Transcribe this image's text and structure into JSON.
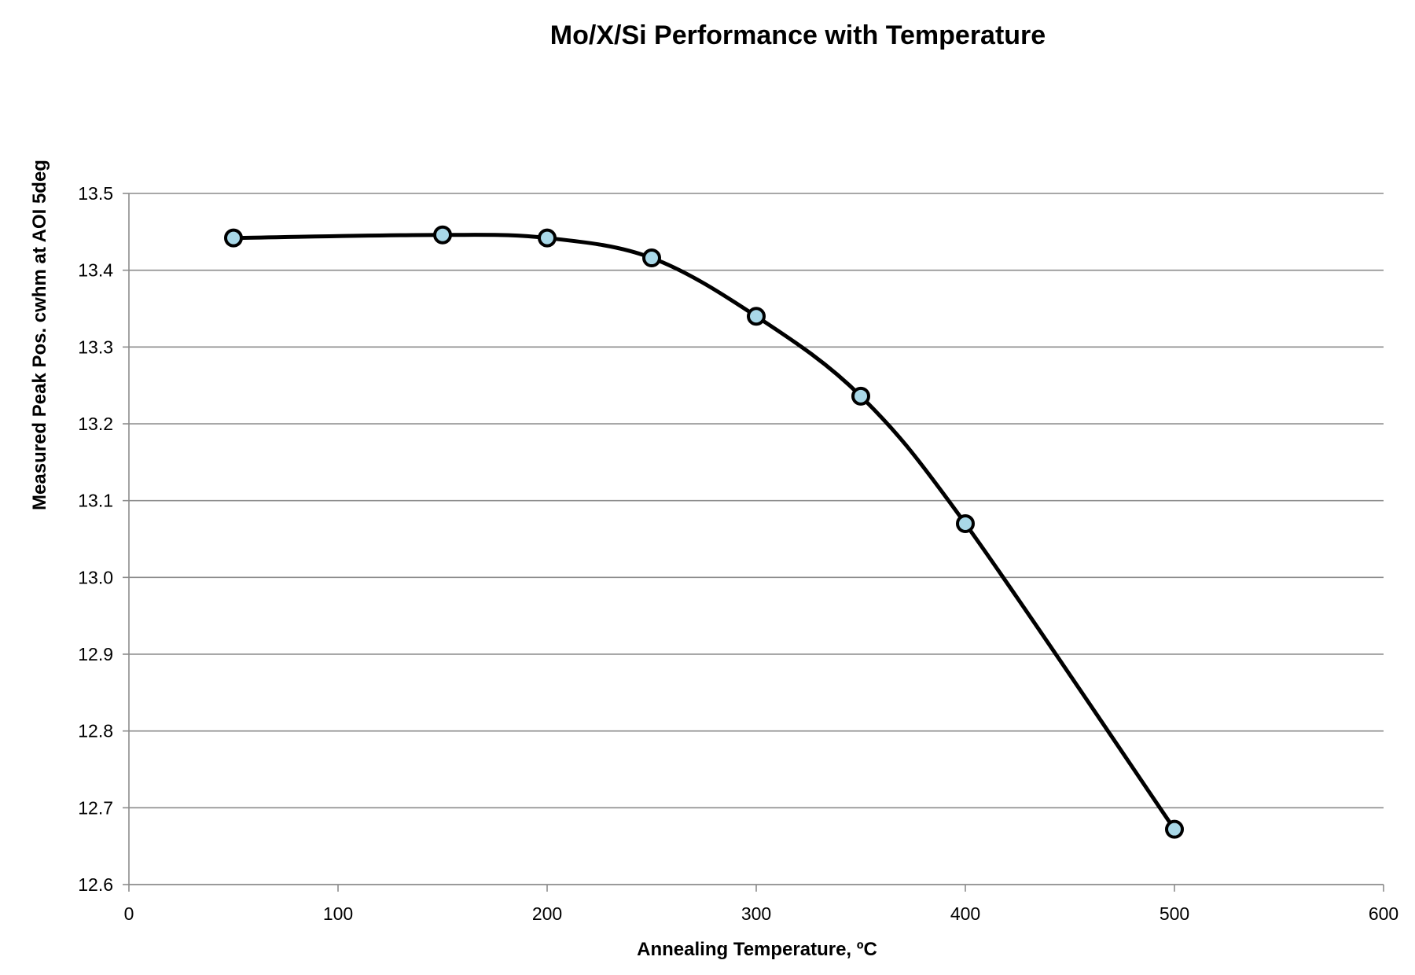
{
  "chart_data": {
    "type": "line",
    "title": "Mo/X/Si Performance with Temperature",
    "xlabel": "Annealing Temperature, ºC",
    "ylabel": "Measured Peak Pos. cwhm at AOI 5deg",
    "xlim": [
      0,
      600
    ],
    "ylim": [
      12.6,
      13.5
    ],
    "x_ticks": [
      0,
      100,
      200,
      300,
      400,
      500,
      600
    ],
    "y_ticks": [
      12.6,
      12.7,
      12.8,
      12.9,
      13.0,
      13.1,
      13.2,
      13.3,
      13.4,
      13.5
    ],
    "x_tick_labels": [
      "0",
      "100",
      "200",
      "300",
      "400",
      "500",
      "600"
    ],
    "y_tick_labels": [
      "12.6",
      "12.7",
      "12.8",
      "12.9",
      "13.0",
      "13.1",
      "13.2",
      "13.3",
      "13.4",
      "13.5"
    ],
    "grid": "horizontal",
    "legend": "none",
    "smooth": true,
    "series": [
      {
        "x": [
          50,
          150,
          200,
          250,
          300,
          350,
          400,
          500
        ],
        "y": [
          13.442,
          13.446,
          13.442,
          13.416,
          13.34,
          13.236,
          13.07,
          12.672
        ],
        "line_color": "#000000",
        "marker_fill": "#a9d8e8",
        "marker_edge": "#000000"
      }
    ]
  }
}
